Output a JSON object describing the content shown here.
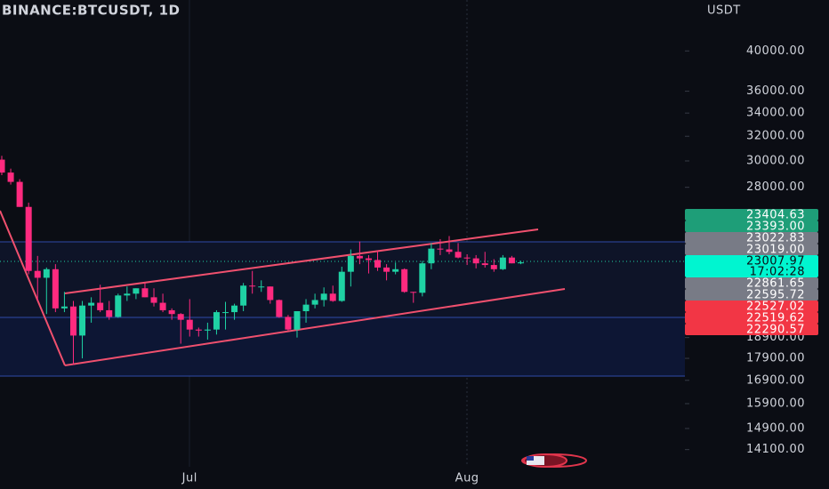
{
  "chart_data": {
    "type": "candlestick",
    "title": "BINANCE:BTCUSDT, 1D",
    "y_label": "USDT",
    "log_scale": true,
    "up_color": "#1fd2a4",
    "down_color": "#ff2a7f",
    "categories": [
      null,
      null,
      null,
      null,
      null,
      null,
      null,
      null,
      null,
      null,
      null,
      null,
      null,
      null,
      null,
      null,
      null,
      null,
      null,
      null,
      null,
      "Jul",
      null,
      null,
      null,
      null,
      null,
      null,
      null,
      null,
      null,
      null,
      null,
      null,
      null,
      null,
      null,
      null,
      null,
      null,
      null,
      null,
      null,
      null,
      null,
      null,
      null,
      null,
      null,
      null,
      null,
      null,
      "Aug",
      null,
      null,
      null,
      null,
      null,
      null
    ],
    "open": [
      30100,
      29100,
      28400,
      26600,
      22500,
      22100,
      22600,
      20400,
      20500,
      19000,
      20550,
      20700,
      20300,
      19950,
      21100,
      21200,
      21500,
      21000,
      20700,
      20300,
      20100,
      19800,
      19300,
      19250,
      19300,
      20200,
      20200,
      20550,
      21650,
      21600,
      21600,
      20850,
      19950,
      19300,
      20250,
      20600,
      20850,
      21200,
      20800,
      22450,
      23400,
      23250,
      23150,
      22700,
      22450,
      22600,
      21300,
      21250,
      22950,
      23850,
      23800,
      23650,
      23300,
      23250,
      22950,
      22850,
      22600,
      23300,
      22950
    ],
    "high": [
      30400,
      29400,
      28600,
      26900,
      23400,
      22700,
      22900,
      21300,
      20800,
      20800,
      21000,
      21700,
      20800,
      21200,
      21600,
      21500,
      21800,
      21500,
      21200,
      20400,
      20150,
      20900,
      19400,
      19650,
      20300,
      20750,
      20650,
      21800,
      22500,
      21950,
      21600,
      20880,
      20050,
      20250,
      20900,
      21200,
      21550,
      21650,
      22750,
      23800,
      24300,
      23450,
      23750,
      22900,
      23000,
      22650,
      21300,
      23100,
      24200,
      24450,
      24650,
      24200,
      23500,
      23450,
      23650,
      23200,
      23450,
      23400,
      23100
    ],
    "low": [
      28900,
      28200,
      26600,
      22300,
      20800,
      20100,
      20200,
      20200,
      17600,
      17900,
      19650,
      20200,
      19800,
      19900,
      20800,
      20900,
      21000,
      20500,
      20200,
      19800,
      18600,
      18950,
      18950,
      18800,
      19050,
      19300,
      19800,
      20250,
      21200,
      21300,
      20650,
      19900,
      19250,
      18900,
      19650,
      20400,
      20500,
      20750,
      20750,
      21600,
      22900,
      22350,
      22500,
      21950,
      22300,
      21250,
      20700,
      21050,
      22600,
      23450,
      23500,
      23250,
      22850,
      22650,
      22700,
      22450,
      22550,
      22950,
      22900
    ],
    "close": [
      29100,
      28400,
      26600,
      22500,
      22100,
      22600,
      20400,
      20500,
      19000,
      20550,
      20700,
      20300,
      19950,
      21100,
      21200,
      21500,
      21000,
      20700,
      20300,
      20100,
      19800,
      19300,
      19250,
      19300,
      20200,
      20200,
      20550,
      21650,
      21600,
      21600,
      20850,
      19950,
      19300,
      20250,
      20600,
      20850,
      21200,
      20800,
      22450,
      23400,
      23250,
      23150,
      22700,
      22450,
      22600,
      21300,
      21250,
      22950,
      23850,
      23800,
      23650,
      23300,
      23250,
      22950,
      22850,
      22600,
      23300,
      22950,
      23007.97
    ],
    "ylim": [
      13480,
      45700
    ],
    "yticks": [
      {
        "value": 40000,
        "label": "40000.00"
      },
      {
        "value": 36000,
        "label": "36000.00"
      },
      {
        "value": 34000,
        "label": "34000.00"
      },
      {
        "value": 32000,
        "label": "32000.00"
      },
      {
        "value": 30000,
        "label": "30000.00"
      },
      {
        "value": 28000,
        "label": "28000.00"
      },
      {
        "value": 18900,
        "label": "18900.00"
      },
      {
        "value": 17900,
        "label": "17900.00"
      },
      {
        "value": 16900,
        "label": "16900.00"
      },
      {
        "value": 15900,
        "label": "15900.00"
      },
      {
        "value": 14900,
        "label": "14900.00"
      },
      {
        "value": 14100,
        "label": "14100.00"
      }
    ],
    "price_tags": [
      {
        "value": 23404.63,
        "color": "#1e9e78"
      },
      {
        "value": 23393,
        "label": "23393.00",
        "color": "#1e9e78"
      },
      {
        "value": 23022.83,
        "color": "#787b86"
      },
      {
        "value": 23019,
        "label": "23019.00",
        "color": "#787b86"
      },
      {
        "value": 23007.97,
        "countdown": "17:02:28",
        "color": "#00f5d0"
      },
      {
        "value": 22861.65,
        "color": "#787b86"
      },
      {
        "value": 22595.72,
        "color": "#787b86"
      },
      {
        "value": 22527.02,
        "color": "#f23645"
      },
      {
        "value": 22519.62,
        "color": "#f23645"
      },
      {
        "value": 22290.57,
        "color": "#f23645"
      }
    ]
  }
}
